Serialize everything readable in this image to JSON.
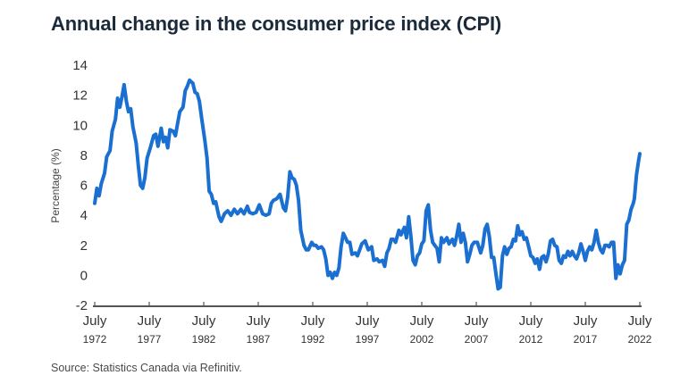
{
  "chart_data": {
    "type": "line",
    "title": "Annual change in the consumer price index (CPI)",
    "xlabel": "",
    "ylabel": "Percentage (%)",
    "ylim": [
      -2,
      14
    ],
    "yticks": [
      14,
      12,
      10,
      8,
      6,
      4,
      2,
      0,
      -2
    ],
    "xlim": [
      1972.5,
      2022.5
    ],
    "xticks": [
      {
        "month": "July",
        "year": "1972",
        "x": 1972.5
      },
      {
        "month": "July",
        "year": "1977",
        "x": 1977.5
      },
      {
        "month": "July",
        "year": "1982",
        "x": 1982.5
      },
      {
        "month": "July",
        "year": "1987",
        "x": 1987.5
      },
      {
        "month": "July",
        "year": "1992",
        "x": 1992.5
      },
      {
        "month": "July",
        "year": "1997",
        "x": 1997.5
      },
      {
        "month": "July",
        "year": "2002",
        "x": 2002.5
      },
      {
        "month": "July",
        "year": "2007",
        "x": 2007.5
      },
      {
        "month": "July",
        "year": "2012",
        "x": 2012.5
      },
      {
        "month": "July",
        "year": "2017",
        "x": 2017.5
      },
      {
        "month": "July",
        "year": "2022",
        "x": 2022.5
      }
    ],
    "grid": false,
    "series": [
      {
        "name": "CPI annual change",
        "color": "#1a6fd1",
        "points": [
          [
            1972.5,
            4.8
          ],
          [
            1972.7,
            5.8
          ],
          [
            1972.9,
            5.3
          ],
          [
            1973.1,
            6.1
          ],
          [
            1973.4,
            6.8
          ],
          [
            1973.6,
            7.9
          ],
          [
            1973.9,
            8.3
          ],
          [
            1974.1,
            9.6
          ],
          [
            1974.4,
            10.4
          ],
          [
            1974.6,
            11.8
          ],
          [
            1974.8,
            11.2
          ],
          [
            1975.0,
            11.9
          ],
          [
            1975.2,
            12.7
          ],
          [
            1975.4,
            11.6
          ],
          [
            1975.6,
            10.9
          ],
          [
            1975.8,
            11.1
          ],
          [
            1976.0,
            9.9
          ],
          [
            1976.3,
            8.8
          ],
          [
            1976.5,
            7.3
          ],
          [
            1976.7,
            6.0
          ],
          [
            1976.9,
            5.8
          ],
          [
            1977.1,
            6.5
          ],
          [
            1977.3,
            7.8
          ],
          [
            1977.6,
            8.5
          ],
          [
            1977.9,
            9.3
          ],
          [
            1978.1,
            9.4
          ],
          [
            1978.3,
            8.6
          ],
          [
            1978.6,
            9.8
          ],
          [
            1978.8,
            8.9
          ],
          [
            1979.0,
            9.2
          ],
          [
            1979.2,
            8.5
          ],
          [
            1979.4,
            9.7
          ],
          [
            1979.7,
            9.6
          ],
          [
            1979.9,
            9.3
          ],
          [
            1980.1,
            10.1
          ],
          [
            1980.3,
            10.9
          ],
          [
            1980.6,
            11.2
          ],
          [
            1980.8,
            12.3
          ],
          [
            1981.0,
            12.6
          ],
          [
            1981.2,
            13.0
          ],
          [
            1981.5,
            12.8
          ],
          [
            1981.7,
            12.2
          ],
          [
            1981.9,
            12.1
          ],
          [
            1982.1,
            11.6
          ],
          [
            1982.3,
            10.5
          ],
          [
            1982.6,
            9.0
          ],
          [
            1982.8,
            7.8
          ],
          [
            1983.0,
            5.6
          ],
          [
            1983.2,
            5.4
          ],
          [
            1983.4,
            4.8
          ],
          [
            1983.6,
            4.9
          ],
          [
            1983.9,
            3.9
          ],
          [
            1984.1,
            3.6
          ],
          [
            1984.4,
            4.1
          ],
          [
            1984.7,
            4.3
          ],
          [
            1985.0,
            4.0
          ],
          [
            1985.3,
            4.4
          ],
          [
            1985.6,
            4.1
          ],
          [
            1985.9,
            4.4
          ],
          [
            1986.2,
            4.1
          ],
          [
            1986.5,
            4.6
          ],
          [
            1986.7,
            4.2
          ],
          [
            1987.0,
            4.1
          ],
          [
            1987.3,
            4.2
          ],
          [
            1987.6,
            4.7
          ],
          [
            1987.9,
            4.1
          ],
          [
            1988.2,
            4.0
          ],
          [
            1988.5,
            4.1
          ],
          [
            1988.7,
            4.8
          ],
          [
            1988.9,
            5.0
          ],
          [
            1989.2,
            5.1
          ],
          [
            1989.5,
            5.4
          ],
          [
            1989.8,
            4.5
          ],
          [
            1990.0,
            4.3
          ],
          [
            1990.2,
            5.2
          ],
          [
            1990.4,
            6.9
          ],
          [
            1990.6,
            6.5
          ],
          [
            1990.8,
            6.4
          ],
          [
            1991.0,
            6.0
          ],
          [
            1991.2,
            5.0
          ],
          [
            1991.4,
            3.0
          ],
          [
            1991.7,
            2.0
          ],
          [
            1991.9,
            1.7
          ],
          [
            1992.1,
            1.7
          ],
          [
            1992.4,
            2.2
          ],
          [
            1992.6,
            2.0
          ],
          [
            1992.8,
            2.0
          ],
          [
            1993.0,
            1.8
          ],
          [
            1993.3,
            1.9
          ],
          [
            1993.5,
            1.7
          ],
          [
            1993.7,
            1.1
          ],
          [
            1993.9,
            0.0
          ],
          [
            1994.1,
            0.2
          ],
          [
            1994.3,
            -0.2
          ],
          [
            1994.5,
            0.2
          ],
          [
            1994.7,
            0.0
          ],
          [
            1994.9,
            0.5
          ],
          [
            1995.1,
            1.9
          ],
          [
            1995.3,
            2.8
          ],
          [
            1995.5,
            2.5
          ],
          [
            1995.7,
            2.2
          ],
          [
            1995.9,
            2.2
          ],
          [
            1996.1,
            1.4
          ],
          [
            1996.4,
            1.5
          ],
          [
            1996.6,
            1.3
          ],
          [
            1996.8,
            1.7
          ],
          [
            1997.0,
            2.1
          ],
          [
            1997.3,
            2.3
          ],
          [
            1997.6,
            1.7
          ],
          [
            1997.9,
            1.9
          ],
          [
            1998.1,
            1.0
          ],
          [
            1998.4,
            1.1
          ],
          [
            1998.6,
            0.9
          ],
          [
            1998.9,
            1.0
          ],
          [
            1999.1,
            0.6
          ],
          [
            1999.3,
            1.5
          ],
          [
            1999.5,
            1.8
          ],
          [
            1999.7,
            2.4
          ],
          [
            1999.9,
            2.4
          ],
          [
            2000.1,
            2.2
          ],
          [
            2000.4,
            3.0
          ],
          [
            2000.6,
            2.7
          ],
          [
            2000.9,
            3.2
          ],
          [
            2001.1,
            2.5
          ],
          [
            2001.3,
            3.9
          ],
          [
            2001.5,
            2.6
          ],
          [
            2001.7,
            1.0
          ],
          [
            2001.9,
            0.7
          ],
          [
            2002.1,
            1.3
          ],
          [
            2002.3,
            1.5
          ],
          [
            2002.5,
            2.1
          ],
          [
            2002.7,
            2.3
          ],
          [
            2002.9,
            4.3
          ],
          [
            2003.1,
            4.7
          ],
          [
            2003.3,
            3.0
          ],
          [
            2003.5,
            2.2
          ],
          [
            2003.7,
            2.0
          ],
          [
            2003.9,
            1.8
          ],
          [
            2004.1,
            0.9
          ],
          [
            2004.3,
            2.5
          ],
          [
            2004.5,
            2.2
          ],
          [
            2004.8,
            2.5
          ],
          [
            2005.0,
            2.1
          ],
          [
            2005.3,
            2.4
          ],
          [
            2005.5,
            2.0
          ],
          [
            2005.7,
            2.6
          ],
          [
            2005.9,
            3.4
          ],
          [
            2006.1,
            2.2
          ],
          [
            2006.3,
            2.8
          ],
          [
            2006.5,
            2.2
          ],
          [
            2006.7,
            0.9
          ],
          [
            2006.9,
            1.4
          ],
          [
            2007.1,
            2.0
          ],
          [
            2007.3,
            2.2
          ],
          [
            2007.6,
            2.2
          ],
          [
            2007.9,
            1.5
          ],
          [
            2008.1,
            2.0
          ],
          [
            2008.3,
            3.1
          ],
          [
            2008.5,
            3.4
          ],
          [
            2008.7,
            2.6
          ],
          [
            2008.9,
            1.2
          ],
          [
            2009.1,
            1.2
          ],
          [
            2009.3,
            0.1
          ],
          [
            2009.5,
            -0.9
          ],
          [
            2009.7,
            -0.8
          ],
          [
            2009.9,
            1.3
          ],
          [
            2010.1,
            1.9
          ],
          [
            2010.3,
            1.4
          ],
          [
            2010.5,
            1.8
          ],
          [
            2010.7,
            1.9
          ],
          [
            2010.9,
            2.4
          ],
          [
            2011.1,
            2.3
          ],
          [
            2011.3,
            3.3
          ],
          [
            2011.5,
            2.7
          ],
          [
            2011.7,
            2.9
          ],
          [
            2011.9,
            2.4
          ],
          [
            2012.1,
            2.5
          ],
          [
            2012.3,
            1.9
          ],
          [
            2012.5,
            1.3
          ],
          [
            2012.7,
            1.2
          ],
          [
            2012.9,
            0.8
          ],
          [
            2013.1,
            1.1
          ],
          [
            2013.3,
            0.4
          ],
          [
            2013.5,
            1.2
          ],
          [
            2013.7,
            1.3
          ],
          [
            2013.9,
            0.9
          ],
          [
            2014.1,
            1.4
          ],
          [
            2014.3,
            2.3
          ],
          [
            2014.5,
            2.4
          ],
          [
            2014.7,
            2.0
          ],
          [
            2014.9,
            1.9
          ],
          [
            2015.1,
            1.0
          ],
          [
            2015.3,
            0.8
          ],
          [
            2015.5,
            1.3
          ],
          [
            2015.7,
            1.2
          ],
          [
            2015.9,
            1.6
          ],
          [
            2016.1,
            1.3
          ],
          [
            2016.3,
            1.6
          ],
          [
            2016.5,
            1.3
          ],
          [
            2016.7,
            1.1
          ],
          [
            2016.9,
            1.5
          ],
          [
            2017.1,
            2.1
          ],
          [
            2017.3,
            1.6
          ],
          [
            2017.5,
            1.0
          ],
          [
            2017.7,
            1.6
          ],
          [
            2017.9,
            1.9
          ],
          [
            2018.1,
            1.7
          ],
          [
            2018.3,
            2.2
          ],
          [
            2018.5,
            3.0
          ],
          [
            2018.7,
            2.2
          ],
          [
            2018.9,
            1.7
          ],
          [
            2019.1,
            1.5
          ],
          [
            2019.3,
            2.0
          ],
          [
            2019.5,
            2.0
          ],
          [
            2019.7,
            1.9
          ],
          [
            2019.9,
            2.2
          ],
          [
            2020.1,
            2.2
          ],
          [
            2020.3,
            -0.2
          ],
          [
            2020.5,
            0.7
          ],
          [
            2020.7,
            0.1
          ],
          [
            2020.9,
            0.7
          ],
          [
            2021.1,
            1.0
          ],
          [
            2021.3,
            3.4
          ],
          [
            2021.5,
            3.7
          ],
          [
            2021.7,
            4.4
          ],
          [
            2021.9,
            4.8
          ],
          [
            2022.0,
            5.1
          ],
          [
            2022.2,
            6.7
          ],
          [
            2022.4,
            7.7
          ],
          [
            2022.5,
            8.1
          ]
        ]
      }
    ],
    "legend": "none"
  },
  "footer": {
    "source": "Source: Statistics Canada via Refinitiv."
  }
}
